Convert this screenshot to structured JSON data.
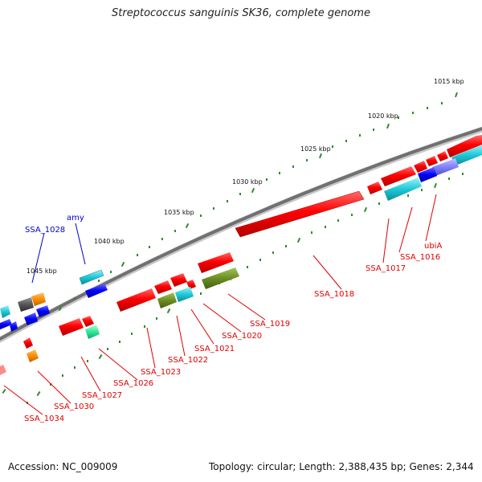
{
  "title": "Streptococcus sanguinis SK36, complete genome",
  "footer": {
    "accession": "Accession: NC_009009",
    "topology": "Topology: circular; Length: 2,388,435 bp; Genes: 2,344"
  },
  "scale_labels": [
    "1015 kbp",
    "1020 kbp",
    "1025 kbp",
    "1030 kbp",
    "1035 kbp",
    "1040 kbp",
    "1045 kbp"
  ],
  "gene_labels": {
    "ubiA": "ubiA",
    "SSA_1016": "SSA_1016",
    "SSA_1017": "SSA_1017",
    "SSA_1018": "SSA_1018",
    "SSA_1019": "SSA_1019",
    "SSA_1020": "SSA_1020",
    "SSA_1021": "SSA_1021",
    "SSA_1022": "SSA_1022",
    "SSA_1023": "SSA_1023",
    "SSA_1026": "SSA_1026",
    "SSA_1027": "SSA_1027",
    "SSA_1030": "SSA_1030",
    "SSA_1034": "SSA_1034",
    "SSA_1028": "SSA_1028",
    "amy": "amy"
  },
  "colors": {
    "backbone": "#707070",
    "cds_red": "#ff0000",
    "cyan": "#1ec8d8",
    "blue": "#0000ff",
    "olive": "#6b8e23",
    "orange": "#ff8c00",
    "slate": "#8080ff",
    "tick_green": "#2e8b2e",
    "label_red": "#e00000",
    "label_blue": "#0000cc"
  }
}
